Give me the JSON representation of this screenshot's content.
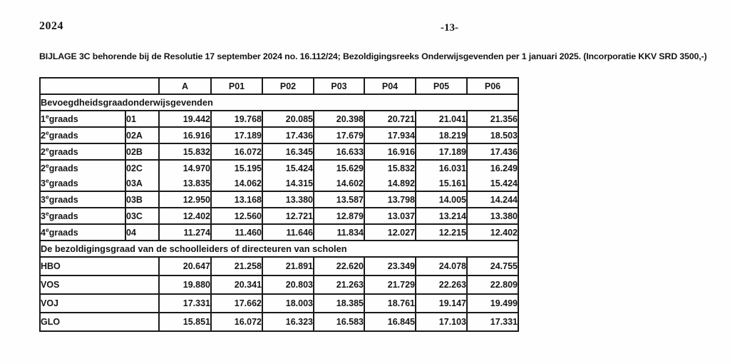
{
  "page": {
    "year": "2024",
    "page_number": "-13-",
    "title": "BIJLAGE 3C behorende bij de Resolutie 17 september 2024 no. 16.112/24; Bezoldigingsreeks Onderwijsgevenden per 1 januari 2025. (Incorporatie KKV SRD 3500,-)"
  },
  "table": {
    "columns": [
      "A",
      "P01",
      "P02",
      "P03",
      "P04",
      "P05",
      "P06"
    ],
    "section1": {
      "header": "Bevoegdheidsgraadonderwijsgevenden",
      "rows": [
        {
          "grade_num": "1",
          "grade_sup": "e",
          "grade_rest": "graads",
          "code": "01",
          "values": [
            "19.442",
            "19.768",
            "20.085",
            "20.398",
            "20.721",
            "21.041",
            "21.356"
          ],
          "group": ""
        },
        {
          "grade_num": "2",
          "grade_sup": "e",
          "grade_rest": "graads",
          "code": "02A",
          "values": [
            "16.916",
            "17.189",
            "17.436",
            "17.679",
            "17.934",
            "18.219",
            "18.503"
          ],
          "group": ""
        },
        {
          "grade_num": "2",
          "grade_sup": "e",
          "grade_rest": "graads",
          "code": "02B",
          "values": [
            "15.832",
            "16.072",
            "16.345",
            "16.633",
            "16.916",
            "17.189",
            "17.436"
          ],
          "group": ""
        },
        {
          "grade_num": "2",
          "grade_sup": "e",
          "grade_rest": "graads",
          "code": "02C",
          "values": [
            "14.970",
            "15.195",
            "15.424",
            "15.629",
            "15.832",
            "16.031",
            "16.249"
          ],
          "group": "top"
        },
        {
          "grade_num": "3",
          "grade_sup": "e",
          "grade_rest": "graads",
          "code": "03A",
          "values": [
            "13.835",
            "14.062",
            "14.315",
            "14.602",
            "14.892",
            "15.161",
            "15.424"
          ],
          "group": "bottom"
        },
        {
          "grade_num": "3",
          "grade_sup": "e",
          "grade_rest": "graads",
          "code": "03B",
          "values": [
            "12.950",
            "13.168",
            "13.380",
            "13.587",
            "13.798",
            "14.005",
            "14.244"
          ],
          "group": ""
        },
        {
          "grade_num": "3",
          "grade_sup": "e",
          "grade_rest": "graads",
          "code": "03C",
          "values": [
            "12.402",
            "12.560",
            "12.721",
            "12.879",
            "13.037",
            "13.214",
            "13.380"
          ],
          "group": ""
        },
        {
          "grade_num": "4",
          "grade_sup": "e",
          "grade_rest": "graads",
          "code": "04",
          "values": [
            "11.274",
            "11.460",
            "11.646",
            "11.834",
            "12.027",
            "12.215",
            "12.402"
          ],
          "group": ""
        }
      ]
    },
    "section2": {
      "header": "De bezoldigingsgraad van de schoolleiders of directeuren van scholen",
      "rows": [
        {
          "label": "HBO",
          "values": [
            "20.647",
            "21.258",
            "21.891",
            "22.620",
            "23.349",
            "24.078",
            "24.755"
          ]
        },
        {
          "label": "VOS",
          "values": [
            "19.880",
            "20.341",
            "20.803",
            "21.263",
            "21.729",
            "22.263",
            "22.809"
          ]
        },
        {
          "label": "VOJ",
          "values": [
            "17.331",
            "17.662",
            "18.003",
            "18.385",
            "18.761",
            "19.147",
            "19.499"
          ]
        },
        {
          "label": "GLO",
          "values": [
            "15.851",
            "16.072",
            "16.323",
            "16.583",
            "16.845",
            "17.103",
            "17.331"
          ]
        }
      ]
    }
  }
}
